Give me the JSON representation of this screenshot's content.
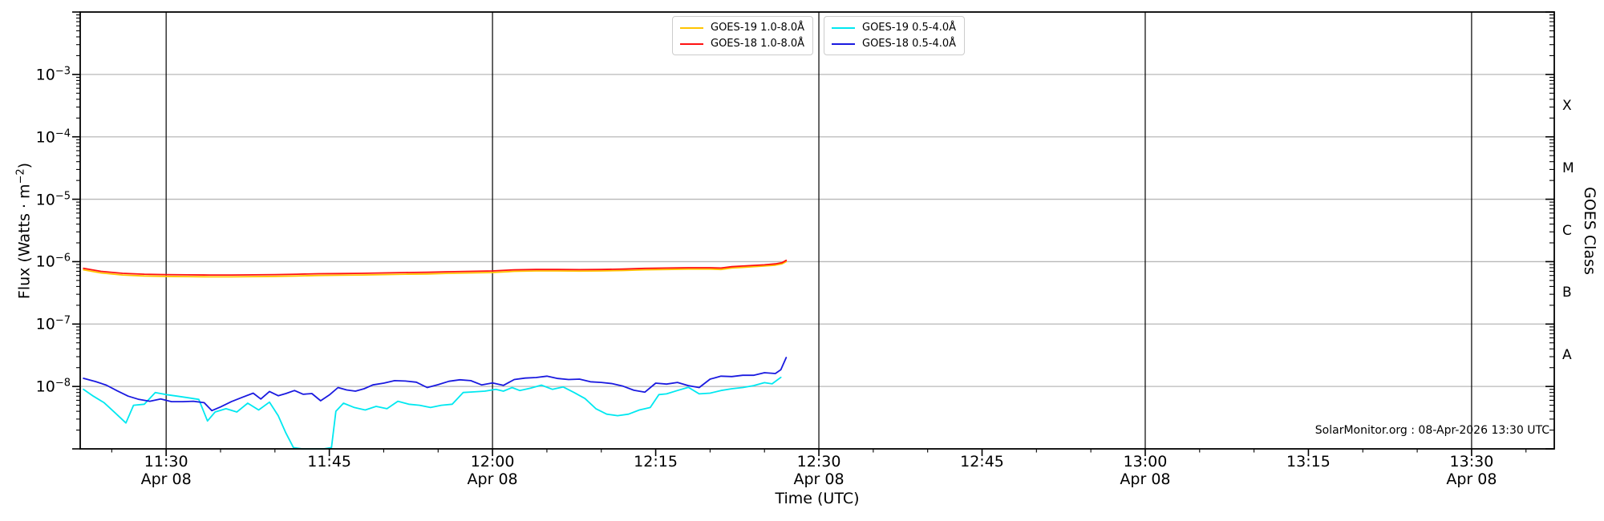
{
  "footer": {
    "credit": "SolarMonitor.org : 08-Apr-2026 13:30 UTC"
  },
  "axes": {
    "x_label": "Time (UTC)",
    "y_label": {
      "pre": "Flux (Watts · m",
      "sup": "−2",
      "post": ")"
    },
    "y2_label": "GOES Class",
    "x_ticks": [
      {
        "t": 30,
        "label": "11:30",
        "date": "Apr 08"
      },
      {
        "t": 45,
        "label": "11:45",
        "date": null
      },
      {
        "t": 60,
        "label": "12:00",
        "date": "Apr 08"
      },
      {
        "t": 75,
        "label": "12:15",
        "date": null
      },
      {
        "t": 90,
        "label": "12:30",
        "date": "Apr 08"
      },
      {
        "t": 105,
        "label": "12:45",
        "date": null
      },
      {
        "t": 120,
        "label": "13:00",
        "date": "Apr 08"
      },
      {
        "t": 135,
        "label": "13:15",
        "date": null
      },
      {
        "t": 150,
        "label": "13:30",
        "date": "Apr 08"
      }
    ],
    "y_tick_exponents": [
      -3,
      -4,
      -5,
      -6,
      -7,
      -8
    ],
    "goes_class_ticks": [
      {
        "label": "X",
        "decade_center": -3.5
      },
      {
        "label": "M",
        "decade_center": -4.5
      },
      {
        "label": "C",
        "decade_center": -5.5
      },
      {
        "label": "B",
        "decade_center": -6.5
      },
      {
        "label": "A",
        "decade_center": -7.5
      }
    ]
  },
  "legend": {
    "boxes": [
      {
        "name": "long-channel",
        "entries": [
          {
            "label": "GOES-19 1.0-8.0Å",
            "color": "#ffc400"
          },
          {
            "label": "GOES-18 1.0-8.0Å",
            "color": "#ff1111"
          }
        ]
      },
      {
        "name": "short-channel",
        "entries": [
          {
            "label": "GOES-19 0.5-4.0Å",
            "color": "#00e8f0"
          },
          {
            "label": "GOES-18 0.5-4.0Å",
            "color": "#1a1ae0"
          }
        ]
      }
    ]
  },
  "colors": {
    "goes19_long": "#ffc400",
    "goes18_long": "#ff1111",
    "goes19_short": "#00e8f0",
    "goes18_short": "#1a1ae0",
    "h_gridline": "#b8b8b8",
    "v_gridline": "#000000",
    "frame": "#000000"
  },
  "chart_data": {
    "type": "line",
    "title": "",
    "xlabel": "Time (UTC)",
    "ylabel": "Flux (Watts · m^-2)",
    "y2label": "GOES Class",
    "y_scale": "log",
    "ylim": [
      1e-09,
      0.01
    ],
    "x_unit": "minutes after 11:00 UTC on 08-Apr-2026",
    "xlim_minutes": [
      22.1,
      157.6
    ],
    "x_major_ticks_minutes": [
      30,
      45,
      60,
      75,
      90,
      105,
      120,
      135,
      150
    ],
    "x_minor_tick_step_minutes": 5,
    "v_gridlines_minutes": [
      30,
      60,
      90,
      120,
      150
    ],
    "h_gridlines_exponents": [
      -3,
      -4,
      -5,
      -6,
      -7,
      -8
    ],
    "grid": true,
    "legend_position": "top-center",
    "series": [
      {
        "name": "GOES-19 1.0-8.0Å",
        "color": "#ffc400",
        "t_minutes": [
          22.4,
          24,
          26,
          28,
          30,
          32,
          34,
          36,
          38,
          40,
          42,
          44,
          46,
          48,
          50,
          52,
          54,
          56,
          58,
          60,
          62,
          64,
          66,
          68,
          70,
          72,
          74,
          76,
          78,
          80,
          81,
          82,
          83,
          84,
          85,
          86,
          86.6,
          87
        ],
        "flux_wm2": [
          7.4e-07,
          6.6e-07,
          6.1e-07,
          5.9e-07,
          5.8e-07,
          5.75e-07,
          5.7e-07,
          5.7e-07,
          5.75e-07,
          5.8e-07,
          5.9e-07,
          6e-07,
          6.05e-07,
          6.1e-07,
          6.2e-07,
          6.3e-07,
          6.35e-07,
          6.5e-07,
          6.6e-07,
          6.7e-07,
          7e-07,
          7.1e-07,
          7.1e-07,
          7.05e-07,
          7.1e-07,
          7.2e-07,
          7.4e-07,
          7.5e-07,
          7.6e-07,
          7.6e-07,
          7.5e-07,
          7.9e-07,
          8.1e-07,
          8.3e-07,
          8.5e-07,
          8.8e-07,
          9.2e-07,
          1e-06
        ]
      },
      {
        "name": "GOES-18 1.0-8.0Å",
        "color": "#ff1111",
        "t_minutes": [
          22.4,
          24,
          26,
          28,
          30,
          32,
          34,
          36,
          38,
          40,
          42,
          44,
          46,
          48,
          50,
          52,
          54,
          56,
          58,
          60,
          62,
          64,
          66,
          68,
          70,
          72,
          74,
          76,
          78,
          80,
          81,
          82,
          83,
          84,
          85,
          86,
          86.6,
          87
        ],
        "flux_wm2": [
          7.8e-07,
          7e-07,
          6.5e-07,
          6.3e-07,
          6.2e-07,
          6.15e-07,
          6.1e-07,
          6.1e-07,
          6.15e-07,
          6.2e-07,
          6.3e-07,
          6.4e-07,
          6.45e-07,
          6.5e-07,
          6.6e-07,
          6.7e-07,
          6.75e-07,
          6.9e-07,
          7e-07,
          7.1e-07,
          7.4e-07,
          7.5e-07,
          7.5e-07,
          7.45e-07,
          7.5e-07,
          7.6e-07,
          7.8e-07,
          7.9e-07,
          8e-07,
          8e-07,
          7.9e-07,
          8.3e-07,
          8.5e-07,
          8.7e-07,
          8.9e-07,
          9.2e-07,
          9.6e-07,
          1.05e-06
        ]
      },
      {
        "name": "GOES-19 0.5-4.0Å",
        "color": "#00e8f0",
        "t_minutes": [
          22.4,
          23.3,
          24.3,
          25.3,
          26.3,
          27,
          28,
          29,
          30,
          31,
          32,
          33,
          33.8,
          34.5,
          35.5,
          36.5,
          37.5,
          38.5,
          39.5,
          40.3,
          41,
          41.7,
          42.5,
          43.5,
          44.5,
          45.2,
          45.6,
          46.3,
          47.3,
          48.3,
          49.3,
          50.3,
          51.3,
          52.3,
          53.3,
          54.3,
          55.3,
          56.3,
          57.3,
          58.3,
          59.3,
          60.3,
          61,
          61.8,
          62.5,
          63.5,
          64.5,
          65.5,
          66.5,
          67.5,
          68.5,
          69.5,
          70.5,
          71.5,
          72.5,
          73.5,
          74.5,
          75.3,
          76,
          77,
          78,
          79,
          80,
          81,
          82,
          83,
          84,
          85,
          85.7,
          86.5
        ],
        "flux_wm2": [
          9e-09,
          7e-09,
          5.5e-09,
          3.8e-09,
          2.6e-09,
          5e-09,
          5.2e-09,
          8e-09,
          7.4e-09,
          7e-09,
          6.6e-09,
          6.2e-09,
          2.8e-09,
          3.9e-09,
          4.4e-09,
          3.9e-09,
          5.4e-09,
          4.2e-09,
          5.6e-09,
          3.4e-09,
          1.8e-09,
          1.05e-09,
          1e-09,
          1e-09,
          1e-09,
          1.05e-09,
          4e-09,
          5.4e-09,
          4.6e-09,
          4.2e-09,
          4.8e-09,
          4.4e-09,
          5.8e-09,
          5.2e-09,
          5e-09,
          4.6e-09,
          5e-09,
          5.2e-09,
          8e-09,
          8.2e-09,
          8.4e-09,
          9e-09,
          8.4e-09,
          9.6e-09,
          8.6e-09,
          9.4e-09,
          1.05e-08,
          9e-09,
          9.8e-09,
          8e-09,
          6.4e-09,
          4.4e-09,
          3.6e-09,
          3.4e-09,
          3.6e-09,
          4.2e-09,
          4.6e-09,
          7.4e-09,
          7.6e-09,
          8.6e-09,
          9.7e-09,
          7.6e-09,
          7.8e-09,
          8.6e-09,
          9.2e-09,
          9.6e-09,
          1.03e-08,
          1.15e-08,
          1.1e-08,
          1.4e-08
        ]
      },
      {
        "name": "GOES-18 0.5-4.0Å",
        "color": "#1a1ae0",
        "t_minutes": [
          22.4,
          23.5,
          24.5,
          25.5,
          26.5,
          27.5,
          28.5,
          29.5,
          30.5,
          31.5,
          32.5,
          33.5,
          34.2,
          35,
          36,
          37,
          38,
          38.7,
          39.5,
          40.3,
          41,
          41.8,
          42.6,
          43.4,
          44.2,
          45,
          45.8,
          46.6,
          47.4,
          48.2,
          49,
          50,
          51,
          52,
          53,
          54,
          55,
          56,
          57,
          58,
          59,
          60,
          61,
          62,
          63,
          64,
          65,
          66,
          67,
          68,
          69,
          70,
          71,
          72,
          73,
          74,
          75,
          76,
          77,
          78,
          79,
          80,
          81,
          82,
          83,
          84,
          85,
          86,
          86.5,
          87
        ],
        "flux_wm2": [
          1.35e-08,
          1.2e-08,
          1.05e-08,
          8.5e-09,
          7e-09,
          6.2e-09,
          5.8e-09,
          6.3e-09,
          5.7e-09,
          5.7e-09,
          5.8e-09,
          5.5e-09,
          4.1e-09,
          4.7e-09,
          5.7e-09,
          6.7e-09,
          7.8e-09,
          6.3e-09,
          8.3e-09,
          7.1e-09,
          7.7e-09,
          8.6e-09,
          7.5e-09,
          7.7e-09,
          5.9e-09,
          7.3e-09,
          9.6e-09,
          8.8e-09,
          8.4e-09,
          9.2e-09,
          1.06e-08,
          1.13e-08,
          1.24e-08,
          1.22e-08,
          1.17e-08,
          9.6e-09,
          1.07e-08,
          1.21e-08,
          1.28e-08,
          1.24e-08,
          1.06e-08,
          1.14e-08,
          1.04e-08,
          1.29e-08,
          1.36e-08,
          1.39e-08,
          1.46e-08,
          1.34e-08,
          1.29e-08,
          1.31e-08,
          1.19e-08,
          1.16e-08,
          1.11e-08,
          1.01e-08,
          8.7e-09,
          8.1e-09,
          1.13e-08,
          1.09e-08,
          1.16e-08,
          1.03e-08,
          9.6e-09,
          1.31e-08,
          1.46e-08,
          1.44e-08,
          1.51e-08,
          1.51e-08,
          1.66e-08,
          1.61e-08,
          1.85e-08,
          2.9e-08
        ]
      }
    ]
  }
}
